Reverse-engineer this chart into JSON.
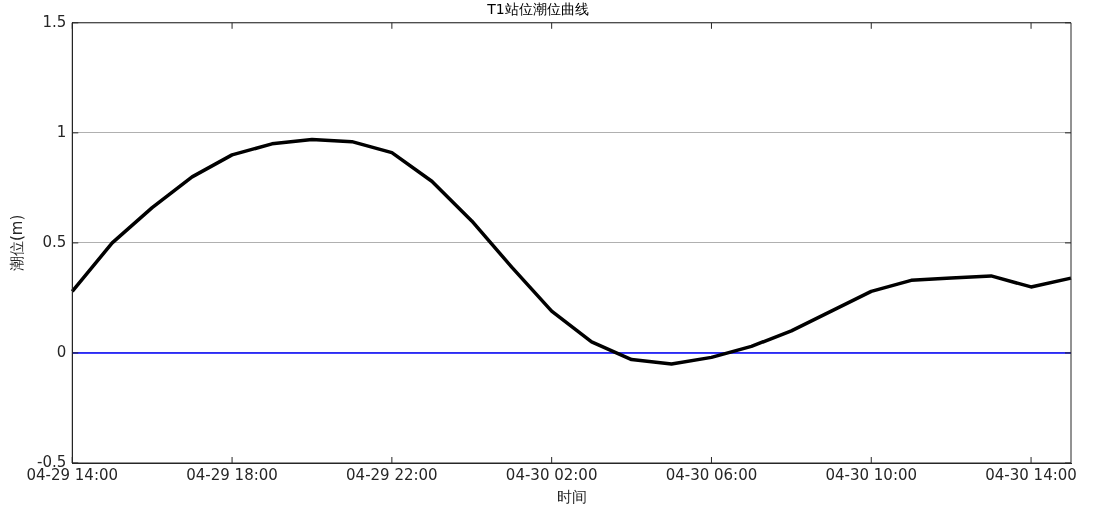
{
  "chart_data": {
    "type": "line",
    "title": "T1站位潮位曲线",
    "xlabel": "时间",
    "ylabel": "潮位(m)",
    "categories": [
      "04-29 14:00",
      null,
      null,
      null,
      "04-29 18:00",
      null,
      null,
      null,
      "04-29 22:00",
      null,
      null,
      null,
      "04-30 02:00",
      null,
      null,
      null,
      "04-30 06:00",
      null,
      null,
      null,
      "04-30 10:00",
      null,
      null,
      null,
      "04-30 14:00",
      null
    ],
    "series": [
      {
        "color": "#000000",
        "values": [
          0.28,
          0.5,
          0.66,
          0.8,
          0.9,
          0.95,
          0.97,
          0.96,
          0.91,
          0.78,
          0.6,
          0.39,
          0.19,
          0.05,
          -0.03,
          -0.05,
          -0.02,
          0.03,
          0.1,
          0.19,
          0.28,
          0.33,
          0.34,
          0.35,
          0.3,
          0.34
        ]
      }
    ],
    "ylim": [
      -0.5,
      1.5
    ],
    "yticks": [
      -0.5,
      0,
      0.5,
      1,
      1.5
    ],
    "ref_lines": [
      {
        "axis": "y",
        "value": 0,
        "color": "#0000ff"
      }
    ],
    "grid": "y",
    "legend": false,
    "marker": "none",
    "line_style": "solid"
  }
}
